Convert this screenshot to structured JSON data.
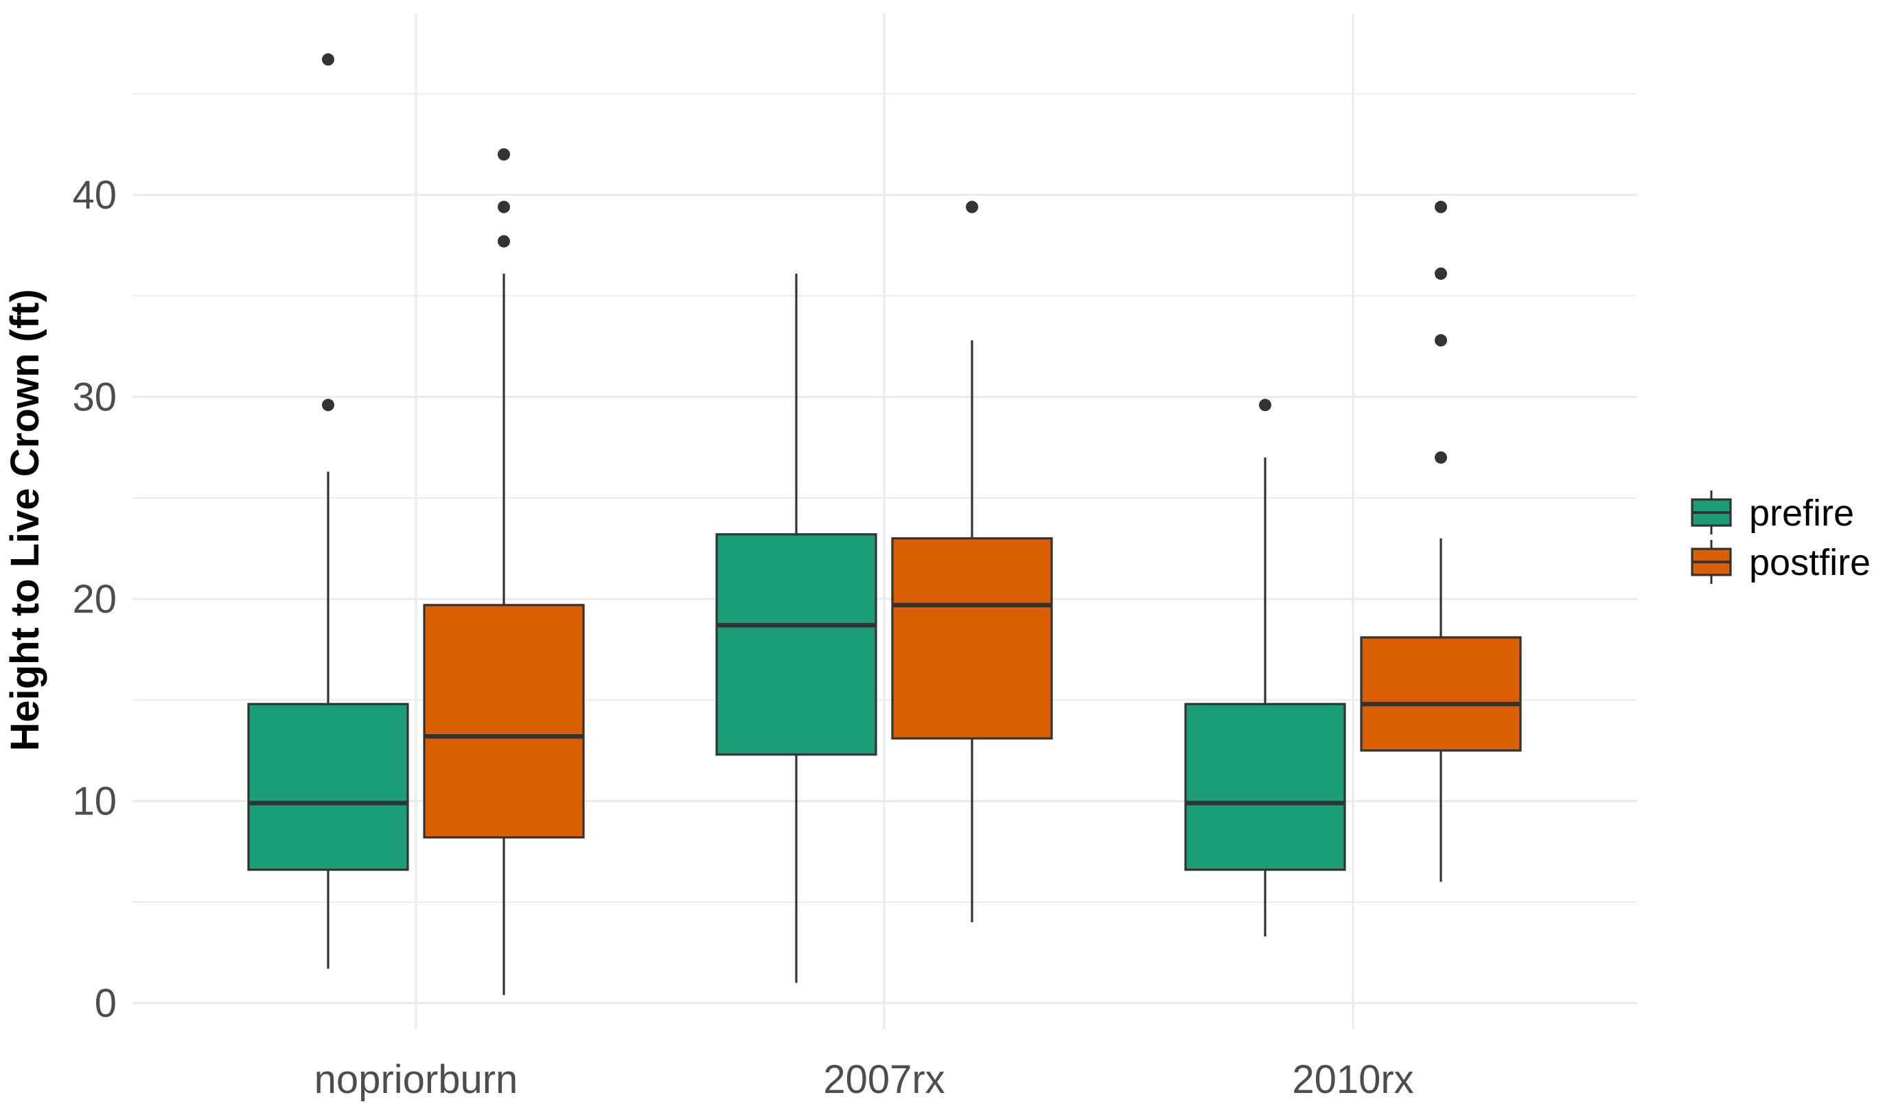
{
  "chart_data": {
    "type": "box",
    "title": "",
    "xlabel": "",
    "ylabel": "Height to Live Crown (ft)",
    "ylim": [
      -2,
      48
    ],
    "yticks": [
      0,
      10,
      20,
      30,
      40
    ],
    "categories": [
      "nopriorburn",
      "2007rx",
      "2010rx"
    ],
    "grid": true,
    "legend_position": "right",
    "series": [
      {
        "name": "prefire",
        "color": "#1b9e77",
        "boxes": [
          {
            "category": "nopriorburn",
            "min": 1.7,
            "q1": 6.6,
            "median": 9.9,
            "q3": 14.8,
            "max": 26.3,
            "outliers": [
              29.6,
              46.7
            ]
          },
          {
            "category": "2007rx",
            "min": 1.0,
            "q1": 12.3,
            "median": 18.7,
            "q3": 23.2,
            "max": 36.1,
            "outliers": []
          },
          {
            "category": "2010rx",
            "min": 3.3,
            "q1": 6.6,
            "median": 9.9,
            "q3": 14.8,
            "max": 27.0,
            "outliers": [
              29.6
            ]
          }
        ]
      },
      {
        "name": "postfire",
        "color": "#d95f02",
        "boxes": [
          {
            "category": "nopriorburn",
            "min": 0.4,
            "q1": 8.2,
            "median": 13.2,
            "q3": 19.7,
            "max": 36.1,
            "outliers": [
              37.7,
              39.4,
              42.0
            ]
          },
          {
            "category": "2007rx",
            "min": 4.0,
            "q1": 13.1,
            "median": 19.7,
            "q3": 23.0,
            "max": 32.8,
            "outliers": [
              39.4
            ]
          },
          {
            "category": "2010rx",
            "min": 6.0,
            "q1": 12.5,
            "median": 14.8,
            "q3": 18.1,
            "max": 23.0,
            "outliers": [
              27.0,
              32.8,
              36.1,
              39.4
            ]
          }
        ]
      }
    ]
  }
}
